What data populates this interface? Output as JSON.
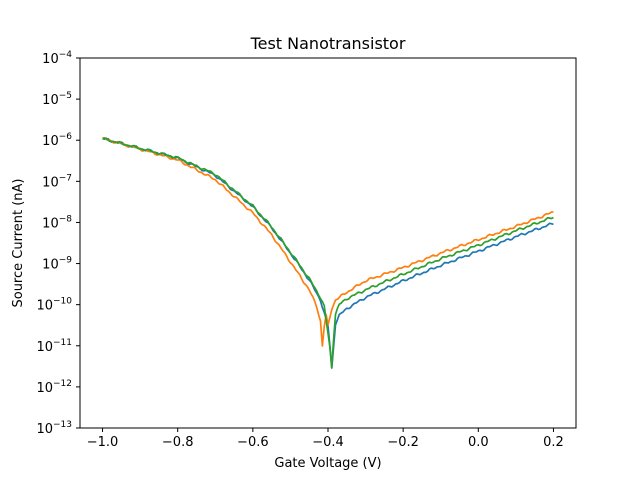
{
  "chart_data": {
    "type": "line",
    "title": "Test Nanotransistor",
    "xlabel": "Gate Voltage (V)",
    "ylabel": "Source Current (nA)",
    "xlim": [
      -1.06,
      0.26
    ],
    "ylim_log10": [
      -13,
      -4
    ],
    "yscale": "log",
    "grid": false,
    "xticks": [
      {
        "value": -1.0,
        "label": "−1.0"
      },
      {
        "value": -0.8,
        "label": "−0.8"
      },
      {
        "value": -0.6,
        "label": "−0.6"
      },
      {
        "value": -0.4,
        "label": "−0.4"
      },
      {
        "value": -0.2,
        "label": "−0.2"
      },
      {
        "value": 0.0,
        "label": "0.0"
      },
      {
        "value": 0.2,
        "label": "0.2"
      }
    ],
    "yticks": [
      {
        "exp": -4,
        "base": "10",
        "sup": "−4"
      },
      {
        "exp": -5,
        "base": "10",
        "sup": "−5"
      },
      {
        "exp": -6,
        "base": "10",
        "sup": "−6"
      },
      {
        "exp": -7,
        "base": "10",
        "sup": "−7"
      },
      {
        "exp": -8,
        "base": "10",
        "sup": "−8"
      },
      {
        "exp": -9,
        "base": "10",
        "sup": "−9"
      },
      {
        "exp": -10,
        "base": "10",
        "sup": "−10"
      },
      {
        "exp": -11,
        "base": "10",
        "sup": "−11"
      },
      {
        "exp": -12,
        "base": "10",
        "sup": "−12"
      },
      {
        "exp": -13,
        "base": "10",
        "sup": "−13"
      }
    ],
    "series": [
      {
        "color": "#1f77b4",
        "x": [
          -1.0,
          -0.9,
          -0.8,
          -0.7,
          -0.6,
          -0.55,
          -0.5,
          -0.45,
          -0.42,
          -0.4,
          -0.395,
          -0.39,
          -0.385,
          -0.38,
          -0.37,
          -0.35,
          -0.3,
          -0.2,
          -0.1,
          0.0,
          0.1,
          0.2
        ],
        "y": [
          1.1e-06,
          6.3e-07,
          3.7e-07,
          1.4e-07,
          2.4e-08,
          7.4e-09,
          1.8e-09,
          4e-10,
          1.3e-10,
          3e-11,
          1e-11,
          2.8e-12,
          1e-11,
          3.5e-11,
          5.5e-11,
          8e-11,
          1.5e-10,
          3.8e-10,
          9e-10,
          2e-09,
          4.5e-09,
          9.5e-09
        ]
      },
      {
        "color": "#ff7f0e",
        "x": [
          -1.0,
          -0.9,
          -0.8,
          -0.7,
          -0.6,
          -0.55,
          -0.5,
          -0.45,
          -0.43,
          -0.42,
          -0.415,
          -0.41,
          -0.405,
          -0.4,
          -0.39,
          -0.38,
          -0.35,
          -0.3,
          -0.2,
          -0.1,
          0.0,
          0.1,
          0.2
        ],
        "y": [
          1.1e-06,
          6.1e-07,
          3.3e-07,
          1.1e-07,
          1.7e-08,
          5e-09,
          1.1e-09,
          2.3e-10,
          9e-11,
          4e-11,
          1e-11,
          3e-11,
          5.5e-11,
          3e-11,
          8e-11,
          1.3e-10,
          2e-10,
          3.8e-10,
          8e-10,
          1.8e-09,
          3.8e-09,
          8e-09,
          1.8e-08
        ]
      },
      {
        "color": "#2ca02c",
        "x": [
          -1.0,
          -0.9,
          -0.8,
          -0.7,
          -0.6,
          -0.55,
          -0.5,
          -0.45,
          -0.42,
          -0.41,
          -0.4,
          -0.395,
          -0.39,
          -0.385,
          -0.38,
          -0.37,
          -0.35,
          -0.3,
          -0.2,
          -0.1,
          0.0,
          0.1,
          0.2
        ],
        "y": [
          1.1e-06,
          6.3e-07,
          3.7e-07,
          1.5e-07,
          2.5e-08,
          7.8e-09,
          1.9e-09,
          4.3e-10,
          1.5e-10,
          9e-11,
          2e-11,
          9e-12,
          3e-12,
          1.6e-11,
          6e-11,
          1e-10,
          1.4e-10,
          2.3e-10,
          5.5e-10,
          1.3e-09,
          2.8e-09,
          6.3e-09,
          1.35e-08
        ]
      }
    ]
  }
}
